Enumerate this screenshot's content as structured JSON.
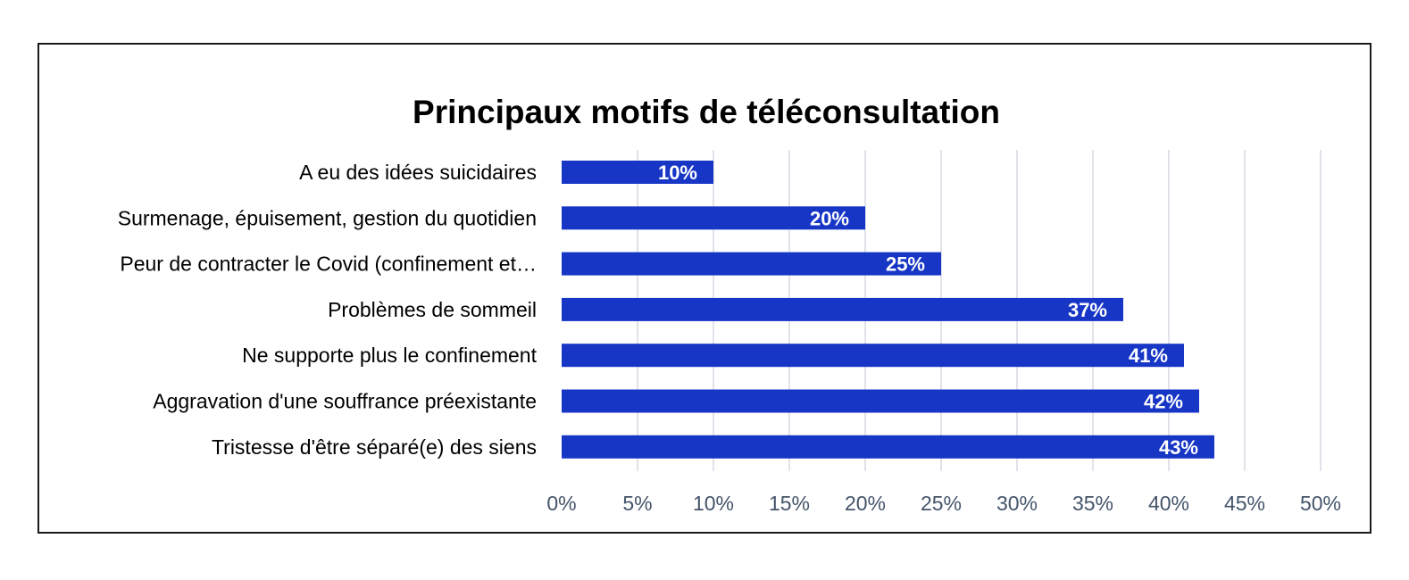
{
  "chart_data": {
    "type": "bar",
    "orientation": "horizontal",
    "title": "Principaux motifs de téléconsultation",
    "categories": [
      "A eu des idées suicidaires",
      "Surmenage, épuisement, gestion du quotidien",
      "Peur de contracter le Covid (confinement et…",
      "Problèmes de sommeil",
      "Ne supporte plus le confinement",
      "Aggravation d'une souffrance préexistante",
      "Tristesse d'être séparé(e) des siens"
    ],
    "values": [
      10,
      20,
      25,
      37,
      41,
      42,
      43
    ],
    "data_labels": [
      "10%",
      "20%",
      "25%",
      "37%",
      "41%",
      "42%",
      "43%"
    ],
    "xlim": [
      0,
      50
    ],
    "x_ticks": [
      0,
      5,
      10,
      15,
      20,
      25,
      30,
      35,
      40,
      45,
      50
    ],
    "x_tick_labels": [
      "0%",
      "5%",
      "10%",
      "15%",
      "20%",
      "25%",
      "30%",
      "35%",
      "40%",
      "45%",
      "50%"
    ],
    "xlabel": "",
    "ylabel": "",
    "grid": "vertical",
    "legend": "none",
    "colors": {
      "bar": "#1736c6",
      "grid": "#d9d9e3",
      "tick_text": "#44546a",
      "border": "#1a1a1a"
    }
  }
}
